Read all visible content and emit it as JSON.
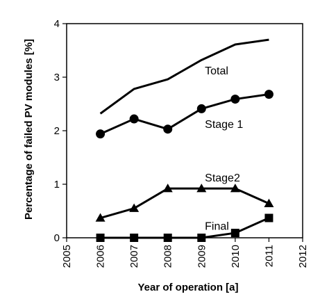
{
  "chart_data": {
    "type": "line",
    "title": "",
    "xlabel": "Year of operation [a]",
    "ylabel": "Percentage of failed PV modules [%]",
    "xlim": [
      2005,
      2012
    ],
    "ylim": [
      0,
      4
    ],
    "xticks": [
      "2005",
      "2006",
      "2007",
      "2008",
      "2009",
      "2010",
      "2011",
      "2012"
    ],
    "yticks": [
      "0",
      "1",
      "2",
      "3",
      "4"
    ],
    "grid": false,
    "series": [
      {
        "name": "Total",
        "marker": "none",
        "x": [
          2006,
          2007,
          2008,
          2009,
          2010,
          2011
        ],
        "y": [
          2.32,
          2.78,
          2.96,
          3.32,
          3.61,
          3.7
        ]
      },
      {
        "name": "Stage 1",
        "marker": "circle",
        "x": [
          2006,
          2007,
          2008,
          2009,
          2010,
          2011
        ],
        "y": [
          1.94,
          2.22,
          2.03,
          2.41,
          2.59,
          2.68
        ]
      },
      {
        "name": "Stage2",
        "marker": "triangle",
        "x": [
          2006,
          2007,
          2008,
          2009,
          2010,
          2011
        ],
        "y": [
          0.37,
          0.55,
          0.92,
          0.92,
          0.92,
          0.64
        ]
      },
      {
        "name": "Final",
        "marker": "square",
        "x": [
          2006,
          2007,
          2008,
          2009,
          2010,
          2011
        ],
        "y": [
          0.0,
          0.0,
          0.0,
          0.0,
          0.09,
          0.37
        ]
      }
    ]
  }
}
